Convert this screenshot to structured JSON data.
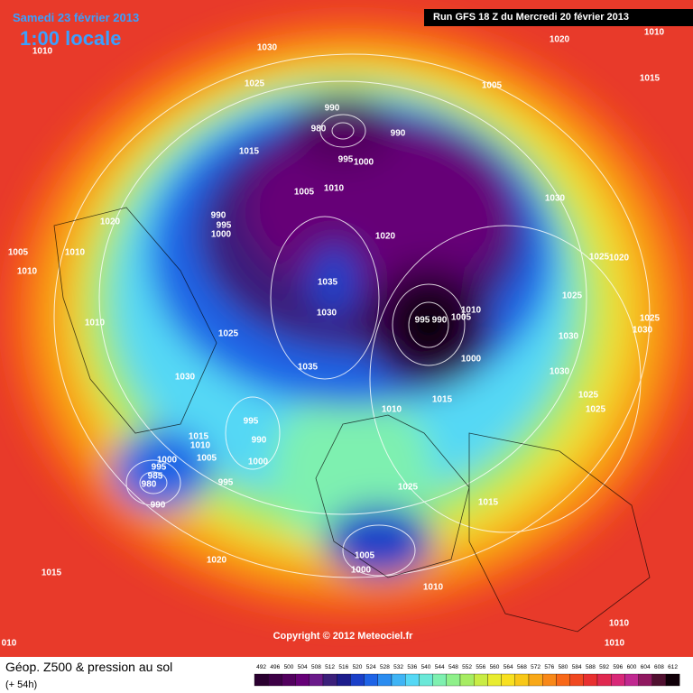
{
  "header": {
    "date": "Samedi 23 février 2013",
    "time": "1:00 locale",
    "run": "Run GFS 18 Z du Mercredi 20 février 2013",
    "copyright": "Copyright © 2012 Meteociel.fr"
  },
  "footer": {
    "title": "Géop. Z500 & pression au sol",
    "lead": "(+ 54h)"
  },
  "legend": {
    "values": [
      492,
      496,
      500,
      504,
      508,
      512,
      516,
      520,
      524,
      528,
      532,
      536,
      540,
      544,
      548,
      552,
      556,
      560,
      564,
      568,
      572,
      576,
      580,
      584,
      588,
      592,
      596,
      600,
      604,
      608,
      612
    ],
    "colors": [
      "#2a0030",
      "#3d0046",
      "#52005e",
      "#660077",
      "#6a1a8a",
      "#3b1f7a",
      "#1c1c8c",
      "#1a3fc8",
      "#1e63e6",
      "#2a8cf0",
      "#3fb4f5",
      "#55d8f5",
      "#6ae8d8",
      "#7ef0b0",
      "#8ef08a",
      "#a6ec62",
      "#c8ec44",
      "#e8ec30",
      "#f8e020",
      "#f8c818",
      "#f8a818",
      "#f88818",
      "#f86818",
      "#f04820",
      "#e83030",
      "#e02850",
      "#d82878",
      "#c02890",
      "#901860",
      "#501030",
      "#100008"
    ]
  },
  "isobars": [
    "1010",
    "1030",
    "1025",
    "1005",
    "1020",
    "1010",
    "1015",
    "990",
    "980",
    "990",
    "995",
    "1000",
    "1015",
    "1005",
    "1010",
    "990",
    "995",
    "1000",
    "1020",
    "1030",
    "1020",
    "1010",
    "1005",
    "1010",
    "1035",
    "1025",
    "1020",
    "1025",
    "1030",
    "995",
    "990",
    "1010",
    "1005",
    "1010",
    "1025",
    "1030",
    "1025",
    "1030",
    "1000",
    "1035",
    "1030",
    "1030",
    "1025",
    "1025",
    "1015",
    "1010",
    "995",
    "990",
    "1015",
    "1010",
    "1005",
    "1000",
    "1000",
    "995",
    "985",
    "980",
    "995",
    "990",
    "1025",
    "1015",
    "1020",
    "1005",
    "1000",
    "1015",
    "1010",
    "1010",
    "1010",
    "010"
  ]
}
